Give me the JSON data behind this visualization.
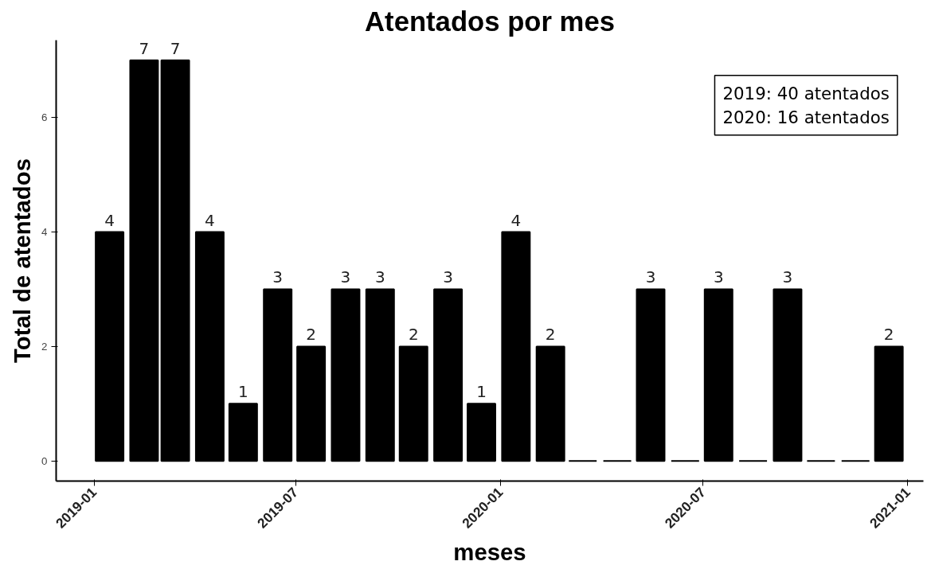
{
  "chart_data": {
    "type": "bar",
    "title": "Atentados por mes",
    "xlabel": "meses",
    "ylabel": "Total de atentados",
    "x": [
      "2019-01-15",
      "2019-02-15",
      "2019-03-15",
      "2019-04-15",
      "2019-05-15",
      "2019-06-15",
      "2019-07-15",
      "2019-08-15",
      "2019-09-15",
      "2019-10-15",
      "2019-11-15",
      "2019-12-15",
      "2020-01-15",
      "2020-02-15",
      "2020-03-15",
      "2020-04-15",
      "2020-05-15",
      "2020-06-15",
      "2020-07-15",
      "2020-08-15",
      "2020-09-15",
      "2020-10-15",
      "2020-11-15",
      "2020-12-15"
    ],
    "values": [
      4,
      7,
      7,
      4,
      1,
      3,
      2,
      3,
      3,
      2,
      3,
      1,
      4,
      2,
      0,
      0,
      3,
      0,
      3,
      0,
      3,
      0,
      0,
      2
    ],
    "value_labels": [
      "4",
      "7",
      "7",
      "4",
      "1",
      "3",
      "2",
      "3",
      "3",
      "2",
      "3",
      "1",
      "4",
      "2",
      null,
      null,
      "3",
      null,
      "3",
      null,
      "3",
      null,
      null,
      "2"
    ],
    "color": "#000000",
    "xlim": [
      "2018-11-28",
      "2021-01-15"
    ],
    "xticks": [
      {
        "value": "2019-01-01",
        "label": "2019-01"
      },
      {
        "value": "2019-07-01",
        "label": "2019-07"
      },
      {
        "value": "2020-01-01",
        "label": "2020-01"
      },
      {
        "value": "2020-07-01",
        "label": "2020-07"
      },
      {
        "value": "2021-01-01",
        "label": "2021-01"
      }
    ],
    "ylim": [
      -0.35,
      7.35
    ],
    "yticks": [
      0,
      2,
      4,
      6
    ],
    "grid": false,
    "annotations": [
      "2019: 40 atentados",
      "2020: 16 atentados"
    ]
  }
}
